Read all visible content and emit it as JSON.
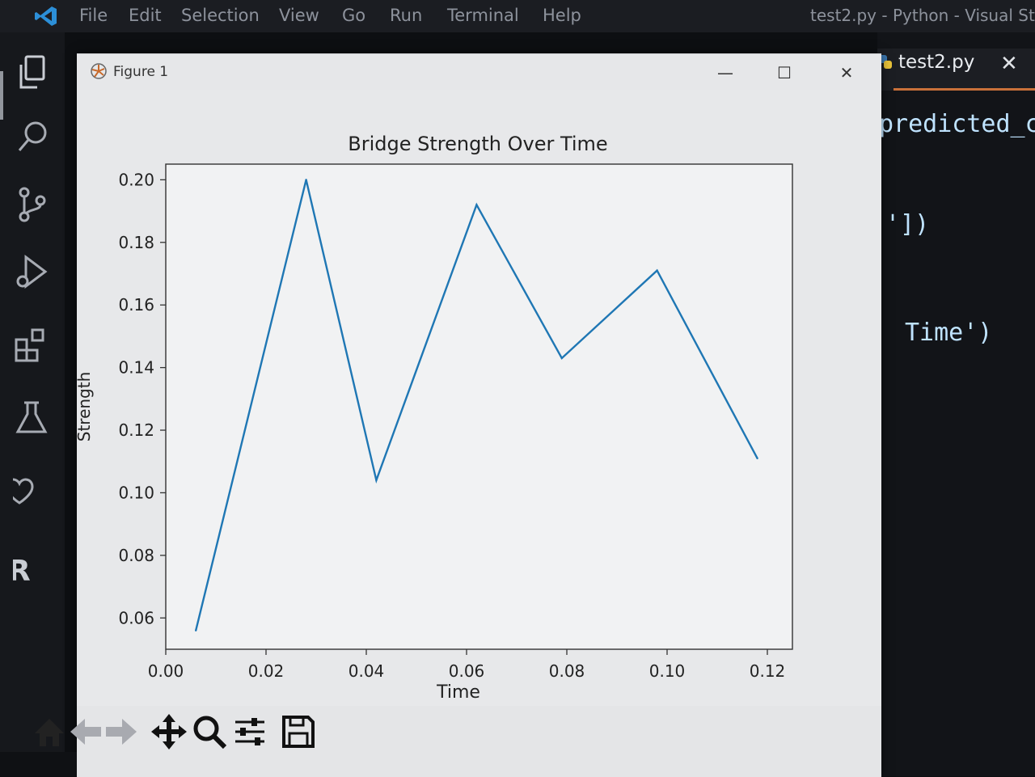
{
  "menubar": {
    "items": [
      "File",
      "Edit",
      "Selection",
      "View",
      "Go",
      "Run",
      "Terminal",
      "Help"
    ],
    "window_title": "test2.py - Python - Visual St"
  },
  "activity_bar": {
    "icons": [
      "explorer-icon",
      "search-icon",
      "source-control-icon",
      "run-debug-icon",
      "extensions-icon",
      "testing-icon",
      "heart-icon",
      "r-icon"
    ]
  },
  "editor": {
    "tab_label": "test2.py",
    "tab_close": "✕",
    "code_lines": [
      "predicted_co",
      "'])",
      "Time')"
    ]
  },
  "figure": {
    "window_title": "Figure 1",
    "controls": {
      "minimize": "—",
      "maximize": "☐",
      "close": "✕"
    },
    "toolbar": [
      "home-icon",
      "back-icon",
      "forward-icon",
      "pan-icon",
      "zoom-icon",
      "configure-icon",
      "save-icon"
    ]
  },
  "chart_data": {
    "type": "line",
    "title": "Bridge Strength Over Time",
    "xlabel": "Time",
    "ylabel": "Strength",
    "x": [
      0.006,
      0.028,
      0.042,
      0.062,
      0.079,
      0.098,
      0.118
    ],
    "y": [
      0.056,
      0.2,
      0.104,
      0.192,
      0.143,
      0.171,
      0.111
    ],
    "xticks": [
      0.0,
      0.02,
      0.04,
      0.06,
      0.08,
      0.1,
      0.12
    ],
    "xtick_labels": [
      "0.00",
      "0.02",
      "0.04",
      "0.06",
      "0.08",
      "0.10",
      "0.12"
    ],
    "yticks": [
      0.06,
      0.08,
      0.1,
      0.12,
      0.14,
      0.16,
      0.18,
      0.2
    ],
    "ytick_labels": [
      "0.06",
      "0.08",
      "0.10",
      "0.12",
      "0.14",
      "0.16",
      "0.18",
      "0.20"
    ],
    "xlim": [
      0.0,
      0.125
    ],
    "ylim": [
      0.05,
      0.205
    ],
    "color": "#1f77b4",
    "grid": false
  }
}
